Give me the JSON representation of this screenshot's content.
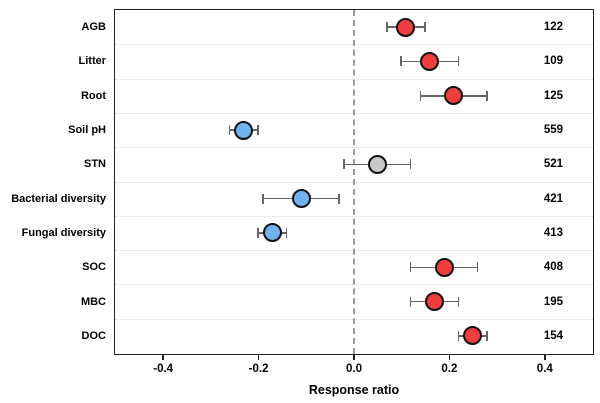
{
  "chart_data": {
    "type": "scatter",
    "subtype": "forest_plot_effect_sizes",
    "title": "",
    "xlabel": "Response ratio",
    "ylabel": "",
    "xlim": [
      -0.5,
      0.5
    ],
    "xticks": [
      -0.4,
      -0.2,
      0.0,
      0.2,
      0.4
    ],
    "grid": "dotted horizontal separators between rows",
    "zero_reference_line": 0.0,
    "legend_position": "none",
    "rows": [
      {
        "label": "AGB",
        "value": 0.11,
        "ci": [
          0.07,
          0.15
        ],
        "n": "122",
        "group": "increase"
      },
      {
        "label": "Litter",
        "value": 0.16,
        "ci": [
          0.1,
          0.22
        ],
        "n": "109",
        "group": "increase"
      },
      {
        "label": "Root",
        "value": 0.21,
        "ci": [
          0.14,
          0.28
        ],
        "n": "125",
        "group": "increase"
      },
      {
        "label": "Soil pH",
        "value": -0.23,
        "ci": [
          -0.26,
          -0.2
        ],
        "n": "559",
        "group": "decrease"
      },
      {
        "label": "STN",
        "value": 0.05,
        "ci": [
          -0.02,
          0.12
        ],
        "n": "521",
        "group": "neutral"
      },
      {
        "label": "Bacterial diversity",
        "value": -0.11,
        "ci": [
          -0.19,
          -0.03
        ],
        "n": "421",
        "group": "decrease"
      },
      {
        "label": "Fungal diversity",
        "value": -0.17,
        "ci": [
          -0.2,
          -0.14
        ],
        "n": "413",
        "group": "decrease"
      },
      {
        "label": "SOC",
        "value": 0.19,
        "ci": [
          0.12,
          0.26
        ],
        "n": "408",
        "group": "increase"
      },
      {
        "label": "MBC",
        "value": 0.17,
        "ci": [
          0.12,
          0.22
        ],
        "n": "195",
        "group": "increase"
      },
      {
        "label": "DOC",
        "value": 0.25,
        "ci": [
          0.22,
          0.28
        ],
        "n": "154",
        "group": "increase"
      }
    ],
    "colors": {
      "increase": "#f23d3d",
      "decrease": "#70b2ee",
      "neutral": "#c9c9c9",
      "marker_stroke": "#111111",
      "error_bar": "#666666",
      "zero_line": "#9a9a9a",
      "gridline": "#d8d8d8",
      "border": "#222222"
    }
  }
}
